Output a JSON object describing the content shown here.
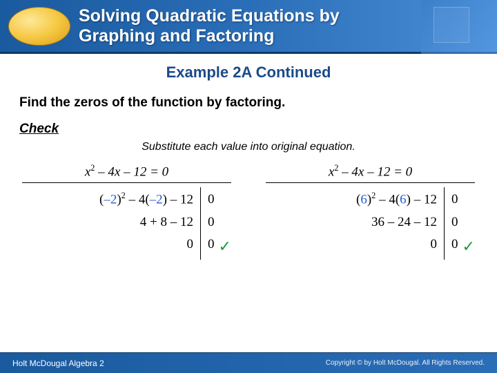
{
  "header": {
    "title_line1": "Solving Quadratic Equations by",
    "title_line2": "Graphing and Factoring",
    "accent_color": "#f5c842"
  },
  "content": {
    "example_title": "Example 2A Continued",
    "instruction": "Find the zeros of the function by factoring.",
    "check_label": "Check",
    "subtext": "Substitute each value into original equation."
  },
  "checks": [
    {
      "equation": "x² – 4x – 12 = 0",
      "steps": [
        {
          "lhs_pre": "(",
          "lhs_val": "–2",
          "lhs_mid": ")² – 4(",
          "lhs_val2": "–2",
          "lhs_post": ") – 12",
          "rhs": "0"
        },
        {
          "lhs_pre": "",
          "lhs_val": "",
          "lhs_mid": "4 + 8 – 12",
          "lhs_val2": "",
          "lhs_post": "",
          "rhs": "0"
        },
        {
          "lhs_pre": "",
          "lhs_val": "",
          "lhs_mid": "0",
          "lhs_val2": "",
          "lhs_post": "",
          "rhs": "0",
          "tick": true
        }
      ],
      "sub_color": "#2a5ad8"
    },
    {
      "equation": "x² – 4x – 12 = 0",
      "steps": [
        {
          "lhs_pre": "(",
          "lhs_val": "6",
          "lhs_mid": ")² – 4(",
          "lhs_val2": "6",
          "lhs_post": ") – 12",
          "rhs": "0"
        },
        {
          "lhs_pre": "",
          "lhs_val": "",
          "lhs_mid": "36 – 24 – 12",
          "lhs_val2": "",
          "lhs_post": "",
          "rhs": "0"
        },
        {
          "lhs_pre": "",
          "lhs_val": "",
          "lhs_mid": "0",
          "lhs_val2": "",
          "lhs_post": "",
          "rhs": "0",
          "tick": true
        }
      ],
      "sub_color": "#2a5ad8"
    }
  ],
  "footer": {
    "left": "Holt McDougal Algebra 2",
    "right": "Copyright © by Holt McDougal. All Rights Reserved."
  },
  "colors": {
    "header_bg_from": "#1a5a9e",
    "header_bg_to": "#4a8ed8",
    "title_color": "#1a4a8a",
    "tick_color": "#1a9a3a",
    "text": "#000000"
  }
}
